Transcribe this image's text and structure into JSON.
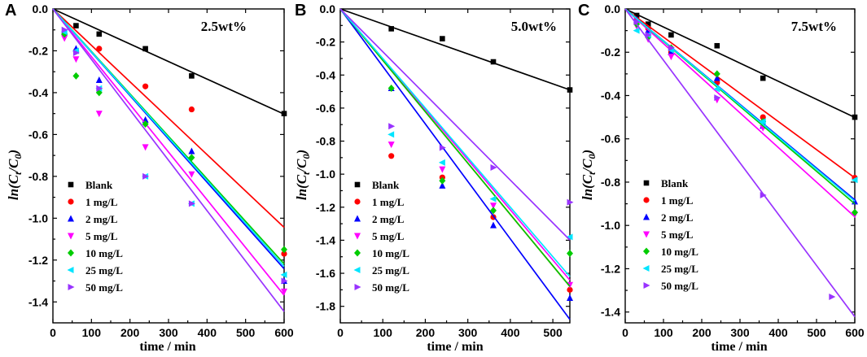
{
  "series_styles": [
    {
      "name": "Blank",
      "color": "#000000",
      "marker": "square"
    },
    {
      "name": "1 mg/L",
      "color": "#ff0000",
      "marker": "circle"
    },
    {
      "name": "2 mg/L",
      "color": "#0000ff",
      "marker": "triangle-up"
    },
    {
      "name": "5 mg/L",
      "color": "#ff00ff",
      "marker": "triangle-down"
    },
    {
      "name": "10 mg/L",
      "color": "#00cc00",
      "marker": "diamond"
    },
    {
      "name": "25 mg/L",
      "color": "#00e5ff",
      "marker": "triangle-left"
    },
    {
      "name": "50 mg/L",
      "color": "#9933ff",
      "marker": "triangle-right"
    }
  ],
  "chart_data": [
    {
      "panel": "A",
      "type": "scatter",
      "annotation": "2.5wt%",
      "xlabel": "time / min",
      "ylabel": "ln(Ct/C0)",
      "xlim": [
        0,
        600
      ],
      "ylim": [
        -1.5,
        0
      ],
      "xticks": [
        0,
        100,
        200,
        300,
        400,
        500,
        600
      ],
      "yticks": [
        0.0,
        -0.2,
        -0.4,
        -0.6,
        -0.8,
        -1.0,
        -1.2,
        -1.4
      ],
      "ytick_labels": [
        "0.0",
        "-0.2",
        "-0.4",
        "-0.6",
        "-0.8",
        "-1.0",
        "-1.2",
        "-1.4"
      ],
      "series": [
        {
          "name": "Blank",
          "x": [
            60,
            120,
            240,
            360,
            600
          ],
          "y": [
            -0.08,
            -0.12,
            -0.19,
            -0.32,
            -0.5
          ],
          "fit_slope": -0.000838
        },
        {
          "name": "1 mg/L",
          "x": [
            30,
            60,
            120,
            240,
            360,
            600
          ],
          "y": [
            -0.12,
            -0.2,
            -0.19,
            -0.37,
            -0.48,
            -1.17
          ],
          "fit_slope": -0.00174
        },
        {
          "name": "2 mg/L",
          "x": [
            30,
            60,
            120,
            240,
            360,
            600
          ],
          "y": [
            -0.11,
            -0.19,
            -0.34,
            -0.53,
            -0.68,
            -1.3
          ],
          "fit_slope": -0.00207
        },
        {
          "name": "5 mg/L",
          "x": [
            30,
            60,
            120,
            240,
            360,
            600
          ],
          "y": [
            -0.14,
            -0.24,
            -0.5,
            -0.66,
            -0.79,
            -1.35
          ],
          "fit_slope": -0.00228
        },
        {
          "name": "10 mg/L",
          "x": [
            30,
            60,
            120,
            240,
            360,
            600
          ],
          "y": [
            -0.12,
            -0.32,
            -0.4,
            -0.55,
            -0.71,
            -1.15
          ],
          "fit_slope": -0.00203
        },
        {
          "name": "25 mg/L",
          "x": [
            30,
            60,
            120,
            240,
            360,
            600
          ],
          "y": [
            -0.11,
            -0.2,
            -0.38,
            -0.8,
            -0.93,
            -1.27
          ],
          "fit_slope": -0.00205
        },
        {
          "name": "50 mg/L",
          "x": [
            30,
            60,
            120,
            240,
            360,
            600
          ],
          "y": [
            -0.1,
            -0.21,
            -0.38,
            -0.8,
            -0.93,
            -1.3
          ],
          "fit_slope": -0.00241
        }
      ]
    },
    {
      "panel": "B",
      "type": "scatter",
      "annotation": "5.0wt%",
      "xlabel": "time / min",
      "ylabel": "ln(Ct/C0)",
      "xlim": [
        0,
        540
      ],
      "ylim": [
        -1.9,
        0
      ],
      "xticks": [
        0,
        100,
        200,
        300,
        400,
        500
      ],
      "yticks": [
        0.0,
        -0.2,
        -0.4,
        -0.6,
        -0.8,
        -1.0,
        -1.2,
        -1.4,
        -1.6,
        -1.8
      ],
      "ytick_labels": [
        "0.0",
        "-0.2",
        "-0.4",
        "-0.6",
        "-0.8",
        "-1.0",
        "-1.2",
        "-1.4",
        "-1.6",
        "-1.8"
      ],
      "series": [
        {
          "name": "Blank",
          "x": [
            120,
            240,
            360,
            540
          ],
          "y": [
            -0.12,
            -0.18,
            -0.32,
            -0.49
          ],
          "fit_slope": -0.000907
        },
        {
          "name": "1 mg/L",
          "x": [
            120,
            240,
            360,
            540
          ],
          "y": [
            -0.89,
            -1.02,
            -1.26,
            -1.7
          ],
          "fit_slope": -0.00311
        },
        {
          "name": "2 mg/L",
          "x": [
            120,
            240,
            360,
            540
          ],
          "y": [
            -0.48,
            -1.07,
            -1.31,
            -1.75
          ],
          "fit_slope": -0.00348
        },
        {
          "name": "5 mg/L",
          "x": [
            120,
            240,
            360,
            540
          ],
          "y": [
            -0.82,
            -0.97,
            -1.19,
            -1.67
          ],
          "fit_slope": -0.00304
        },
        {
          "name": "10 mg/L",
          "x": [
            120,
            240,
            360,
            540
          ],
          "y": [
            -0.48,
            -1.04,
            -1.22,
            -1.48
          ],
          "fit_slope": -0.00311
        },
        {
          "name": "25 mg/L",
          "x": [
            120,
            240,
            360,
            540
          ],
          "y": [
            -0.76,
            -0.93,
            -1.15,
            -1.38
          ],
          "fit_slope": -0.003
        },
        {
          "name": "50 mg/L",
          "x": [
            120,
            240,
            360,
            540
          ],
          "y": [
            -0.71,
            -0.84,
            -0.96,
            -1.17
          ],
          "fit_slope": -0.00259
        }
      ]
    },
    {
      "panel": "C",
      "type": "scatter",
      "annotation": "7.5wt%",
      "xlabel": "time / min",
      "ylabel": "ln(Ct/C0)",
      "xlim": [
        0,
        600
      ],
      "ylim": [
        -1.45,
        0
      ],
      "xticks": [
        0,
        100,
        200,
        300,
        400,
        500,
        600
      ],
      "yticks": [
        0.0,
        -0.2,
        -0.4,
        -0.6,
        -0.8,
        -1.0,
        -1.2,
        -1.4
      ],
      "ytick_labels": [
        "0.0",
        "-0.2",
        "-0.4",
        "-0.6",
        "-0.8",
        "-1.0",
        "-1.2",
        "-1.4"
      ],
      "series": [
        {
          "name": "Blank",
          "x": [
            30,
            60,
            120,
            240,
            360,
            600
          ],
          "y": [
            -0.03,
            -0.07,
            -0.12,
            -0.17,
            -0.32,
            -0.5
          ],
          "fit_slope": -0.000835
        },
        {
          "name": "1 mg/L",
          "x": [
            30,
            60,
            120,
            240,
            360,
            600
          ],
          "y": [
            -0.05,
            -0.09,
            -0.2,
            -0.34,
            -0.5,
            -0.78
          ],
          "fit_slope": -0.0013
        },
        {
          "name": "2 mg/L",
          "x": [
            30,
            60,
            120,
            240,
            360,
            600
          ],
          "y": [
            -0.05,
            -0.1,
            -0.2,
            -0.32,
            -0.54,
            -0.89
          ],
          "fit_slope": -0.00147
        },
        {
          "name": "5 mg/L",
          "x": [
            30,
            60,
            120,
            240,
            360,
            600
          ],
          "y": [
            -0.08,
            -0.14,
            -0.22,
            -0.42,
            -0.55,
            -0.95
          ],
          "fit_slope": -0.0016
        },
        {
          "name": "10 mg/L",
          "x": [
            30,
            60,
            120,
            240,
            360,
            600
          ],
          "y": [
            -0.07,
            -0.13,
            -0.18,
            -0.3,
            -0.52,
            -0.94
          ],
          "fit_slope": -0.0015
        },
        {
          "name": "25 mg/L",
          "x": [
            30,
            60,
            120,
            240,
            360,
            600
          ],
          "y": [
            -0.1,
            -0.12,
            -0.19,
            -0.37,
            -0.52,
            -0.79
          ],
          "fit_slope": -0.00148
        },
        {
          "name": "50 mg/L",
          "x": [
            30,
            60,
            120,
            240,
            360,
            540
          ],
          "y": [
            -0.06,
            -0.12,
            -0.18,
            -0.41,
            -0.86,
            -1.33
          ],
          "fit_slope": -0.00237
        }
      ]
    }
  ]
}
